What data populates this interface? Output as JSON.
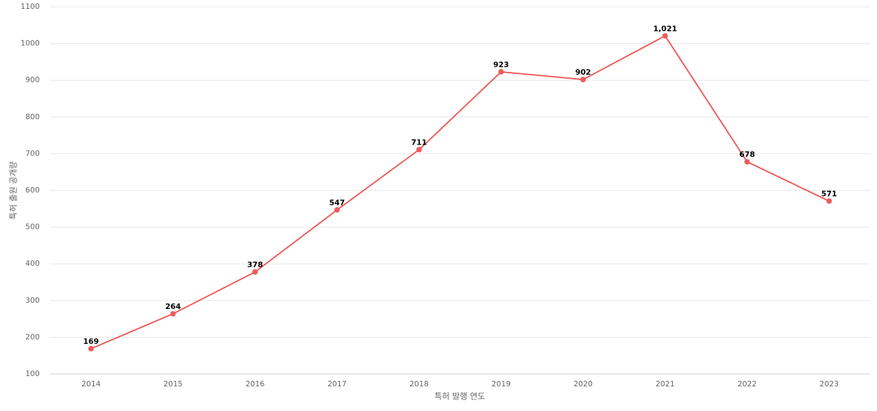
{
  "chart_data": {
    "type": "line",
    "x_label": "특허 발행 연도",
    "y_label": "특허 출원 공개량",
    "categories": [
      "2014",
      "2015",
      "2016",
      "2017",
      "2018",
      "2019",
      "2020",
      "2021",
      "2022",
      "2023"
    ],
    "values": [
      169,
      264,
      378,
      547,
      711,
      923,
      902,
      1021,
      678,
      571
    ],
    "value_labels": [
      "169",
      "264",
      "378",
      "547",
      "711",
      "923",
      "902",
      "1,021",
      "678",
      "571"
    ],
    "color": "#ee5b5b",
    "ylim": [
      100,
      1100
    ],
    "yticks": [
      100,
      200,
      300,
      400,
      500,
      600,
      700,
      800,
      900,
      1000,
      1100
    ],
    "grid": true
  }
}
